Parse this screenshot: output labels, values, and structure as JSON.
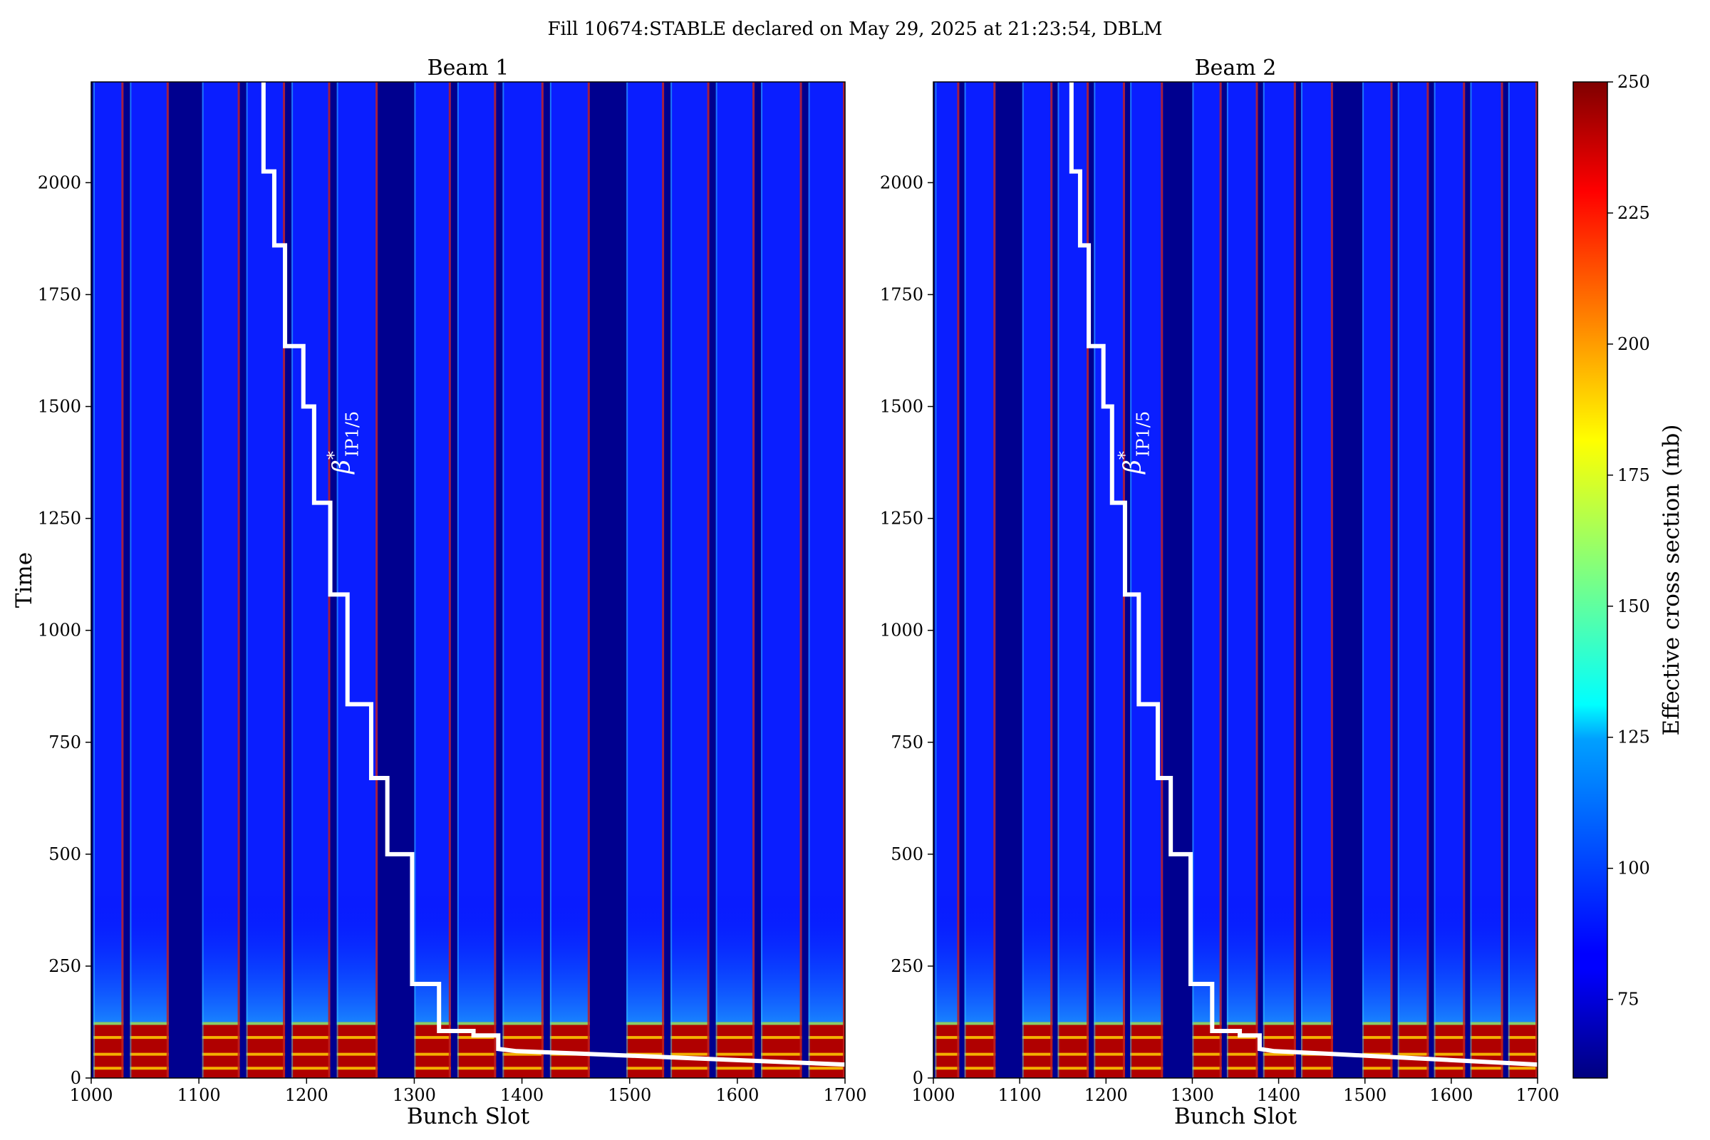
{
  "suptitle": "Fill 10674:STABLE declared on May 29, 2025 at 21:23:54, DBLM",
  "chart_data": {
    "type": "heatmap",
    "panels": [
      {
        "title": "Beam 1",
        "xlabel": "Bunch Slot",
        "ylabel": "Time",
        "xlim": [
          1000,
          1700
        ],
        "ylim": [
          0,
          2225
        ],
        "xticks": [
          1000,
          1100,
          1200,
          1300,
          1400,
          1500,
          1600,
          1700
        ],
        "yticks": [
          0,
          250,
          500,
          750,
          1000,
          1250,
          1500,
          1750,
          2000
        ],
        "annotation": {
          "base": "β",
          "sup": "*",
          "sub": "IP1/5"
        },
        "filled_slot_ranges": [
          [
            1002,
            1030
          ],
          [
            1036,
            1072
          ],
          [
            1103,
            1138
          ],
          [
            1144,
            1180
          ],
          [
            1186,
            1222
          ],
          [
            1228,
            1266
          ],
          [
            1300,
            1334
          ],
          [
            1340,
            1376
          ],
          [
            1382,
            1420
          ],
          [
            1426,
            1463
          ],
          [
            1497,
            1532
          ],
          [
            1538,
            1574
          ],
          [
            1580,
            1616
          ],
          [
            1622,
            1660
          ],
          [
            1666,
            1700
          ]
        ],
        "high_loss_band": {
          "time_range": [
            0,
            125
          ],
          "description_color": "#b00000"
        },
        "beta_star_step_line": {
          "points": [
            [
              1160,
              2225
            ],
            [
              1160,
              2025
            ],
            [
              1170,
              2025
            ],
            [
              1170,
              1860
            ],
            [
              1180,
              1860
            ],
            [
              1180,
              1635
            ],
            [
              1197,
              1635
            ],
            [
              1197,
              1500
            ],
            [
              1207,
              1500
            ],
            [
              1207,
              1285
            ],
            [
              1222,
              1285
            ],
            [
              1222,
              1080
            ],
            [
              1238,
              1080
            ],
            [
              1238,
              835
            ],
            [
              1260,
              835
            ],
            [
              1260,
              670
            ],
            [
              1275,
              670
            ],
            [
              1275,
              500
            ],
            [
              1298,
              500
            ],
            [
              1298,
              210
            ],
            [
              1323,
              210
            ],
            [
              1323,
              105
            ],
            [
              1355,
              105
            ],
            [
              1355,
              95
            ],
            [
              1378,
              95
            ],
            [
              1378,
              65
            ],
            [
              1395,
              60
            ],
            [
              1450,
              55
            ],
            [
              1500,
              50
            ],
            [
              1550,
              45
            ],
            [
              1600,
              40
            ],
            [
              1650,
              35
            ],
            [
              1700,
              30
            ]
          ]
        }
      },
      {
        "title": "Beam 2",
        "xlabel": "Bunch Slot",
        "ylabel": "",
        "xlim": [
          1000,
          1700
        ],
        "ylim": [
          0,
          2225
        ],
        "xticks": [
          1000,
          1100,
          1200,
          1300,
          1400,
          1500,
          1600,
          1700
        ],
        "yticks": [
          0,
          250,
          500,
          750,
          1000,
          1250,
          1500,
          1750,
          2000
        ],
        "annotation": {
          "base": "β",
          "sup": "*",
          "sub": "IP1/5"
        },
        "filled_slot_ranges": [
          [
            1002,
            1030
          ],
          [
            1036,
            1072
          ],
          [
            1103,
            1138
          ],
          [
            1144,
            1180
          ],
          [
            1186,
            1222
          ],
          [
            1228,
            1266
          ],
          [
            1300,
            1334
          ],
          [
            1340,
            1376
          ],
          [
            1382,
            1420
          ],
          [
            1426,
            1463
          ],
          [
            1497,
            1532
          ],
          [
            1538,
            1574
          ],
          [
            1580,
            1616
          ],
          [
            1622,
            1660
          ],
          [
            1666,
            1700
          ]
        ],
        "high_loss_band": {
          "time_range": [
            0,
            125
          ],
          "description_color": "#b00000"
        },
        "beta_star_step_line": {
          "points": [
            [
              1160,
              2225
            ],
            [
              1160,
              2025
            ],
            [
              1170,
              2025
            ],
            [
              1170,
              1860
            ],
            [
              1180,
              1860
            ],
            [
              1180,
              1635
            ],
            [
              1197,
              1635
            ],
            [
              1197,
              1500
            ],
            [
              1207,
              1500
            ],
            [
              1207,
              1285
            ],
            [
              1222,
              1285
            ],
            [
              1222,
              1080
            ],
            [
              1238,
              1080
            ],
            [
              1238,
              835
            ],
            [
              1260,
              835
            ],
            [
              1260,
              670
            ],
            [
              1275,
              670
            ],
            [
              1275,
              500
            ],
            [
              1298,
              500
            ],
            [
              1298,
              210
            ],
            [
              1323,
              210
            ],
            [
              1323,
              105
            ],
            [
              1355,
              105
            ],
            [
              1355,
              95
            ],
            [
              1378,
              95
            ],
            [
              1378,
              65
            ],
            [
              1395,
              60
            ],
            [
              1450,
              55
            ],
            [
              1500,
              50
            ],
            [
              1550,
              45
            ],
            [
              1600,
              40
            ],
            [
              1650,
              35
            ],
            [
              1700,
              30
            ]
          ]
        }
      }
    ],
    "colorbar": {
      "label": "Effective cross section (mb)",
      "range": [
        60,
        250
      ],
      "ticks": [
        75,
        100,
        125,
        150,
        175,
        200,
        225,
        250
      ],
      "colormap": "jet"
    }
  }
}
